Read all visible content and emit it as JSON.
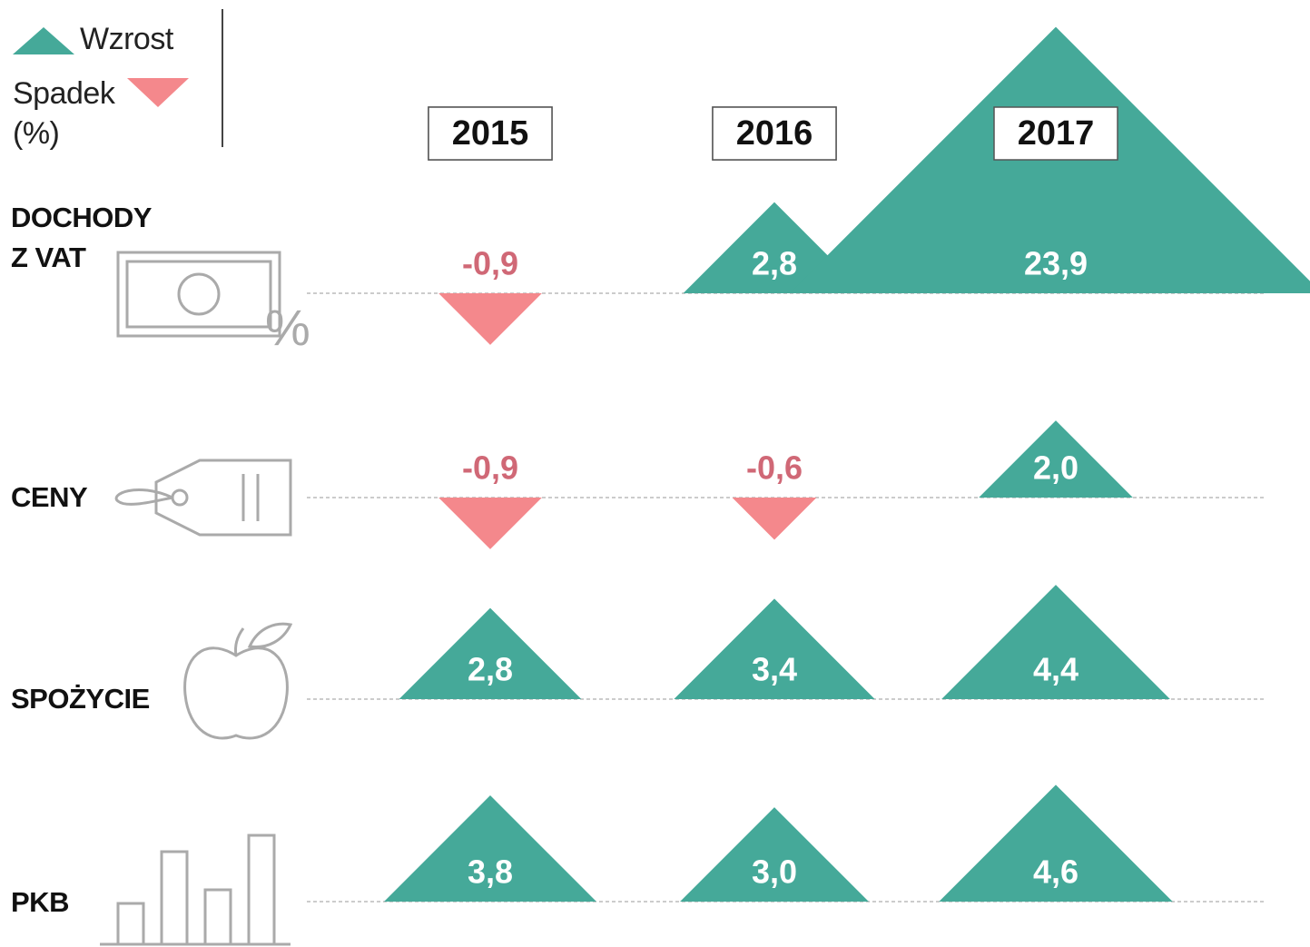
{
  "chart_data": {
    "type": "triangle",
    "legend": {
      "up": "Wzrost",
      "down": "Spadek",
      "unit": "(%)"
    },
    "up_color": "#45a999",
    "down_color": "#f4888c",
    "down_text_color": "#d06876",
    "categories": [
      "DOCHODY Z VAT",
      "CENY",
      "SPOŻYCIE",
      "PKB"
    ],
    "series": [
      {
        "name": "2015",
        "values": [
          -0.9,
          -0.9,
          2.8,
          3.8
        ],
        "value_labels": [
          "-0,9",
          "-0,9",
          "2,8",
          "3,8"
        ]
      },
      {
        "name": "2016",
        "values": [
          2.8,
          -0.6,
          3.4,
          3.0
        ],
        "value_labels": [
          "2,8",
          "-0,6",
          "3,4",
          "3,0"
        ]
      },
      {
        "name": "2017",
        "values": [
          23.9,
          2.0,
          4.4,
          4.6
        ],
        "value_labels": [
          "23,9",
          "2,0",
          "4,4",
          "4,6"
        ]
      }
    ]
  }
}
